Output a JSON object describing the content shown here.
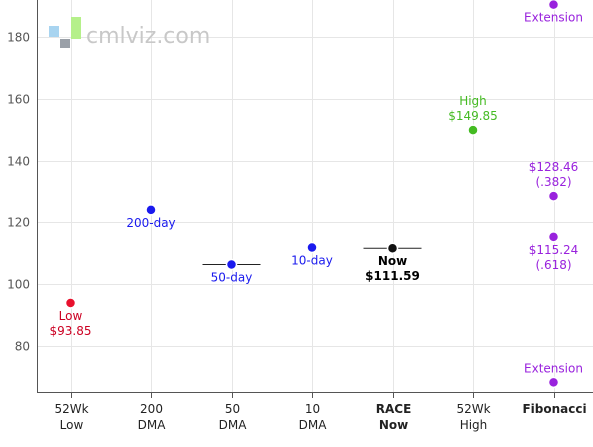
{
  "watermark": {
    "text": "cmlviz.com"
  },
  "chart_data": {
    "type": "scatter",
    "ylim": [
      65,
      192
    ],
    "y_ticks": [
      80,
      100,
      120,
      140,
      160,
      180
    ],
    "grid": true,
    "categories": [
      {
        "line1": "52Wk",
        "line2": "Low",
        "bold": false
      },
      {
        "line1": "200",
        "line2": "DMA",
        "bold": false
      },
      {
        "line1": "50",
        "line2": "DMA",
        "bold": false
      },
      {
        "line1": "10",
        "line2": "DMA",
        "bold": false
      },
      {
        "line1": "RACE",
        "line2": "Now",
        "bold": true
      },
      {
        "line1": "52Wk",
        "line2": "High",
        "bold": false
      },
      {
        "line1": "Fibonacci",
        "line2": "",
        "bold": true
      }
    ],
    "points": [
      {
        "cat": 0,
        "y": 93.85,
        "color": "#e8112d",
        "label": [
          "Low",
          "$93.85"
        ],
        "label_pos": "below",
        "label_color": "#cc0022",
        "bold": false,
        "hline": false
      },
      {
        "cat": 1,
        "y": 124,
        "color": "#1a1aee",
        "label": [
          "200-day"
        ],
        "label_pos": "below",
        "label_color": "#1a1aee",
        "bold": false,
        "hline": false
      },
      {
        "cat": 2,
        "y": 106.3,
        "color": "#1a1aee",
        "label": [
          "50-day"
        ],
        "label_pos": "below",
        "label_color": "#1a1aee",
        "bold": false,
        "hline": true
      },
      {
        "cat": 3,
        "y": 111.8,
        "color": "#1a1aee",
        "label": [
          "10-day"
        ],
        "label_pos": "below",
        "label_color": "#1a1aee",
        "bold": false,
        "hline": false
      },
      {
        "cat": 4,
        "y": 111.59,
        "color": "#111111",
        "label": [
          "Now",
          "$111.59"
        ],
        "label_pos": "below",
        "label_color": "#000000",
        "bold": true,
        "hline": true
      },
      {
        "cat": 5,
        "y": 149.85,
        "color": "#44bb22",
        "label": [
          "High",
          "$149.85"
        ],
        "label_pos": "above",
        "label_color": "#44bb22",
        "bold": false,
        "hline": false
      },
      {
        "cat": 6,
        "y": 190.5,
        "color": "#9922dd",
        "label": [
          "Extension"
        ],
        "label_pos": "below",
        "label_color": "#9922dd",
        "bold": false,
        "hline": false
      },
      {
        "cat": 6,
        "y": 128.46,
        "color": "#9922dd",
        "label": [
          "$128.46",
          "(.382)"
        ],
        "label_pos": "above",
        "label_color": "#9922dd",
        "bold": false,
        "hline": false
      },
      {
        "cat": 6,
        "y": 115.24,
        "color": "#9922dd",
        "label": [
          "$115.24",
          "(.618)"
        ],
        "label_pos": "below",
        "label_color": "#9922dd",
        "bold": false,
        "hline": false
      },
      {
        "cat": 6,
        "y": 68.1,
        "color": "#9922dd",
        "label": [
          "Extension"
        ],
        "label_pos": "above",
        "label_color": "#9922dd",
        "bold": false,
        "hline": false
      }
    ]
  }
}
